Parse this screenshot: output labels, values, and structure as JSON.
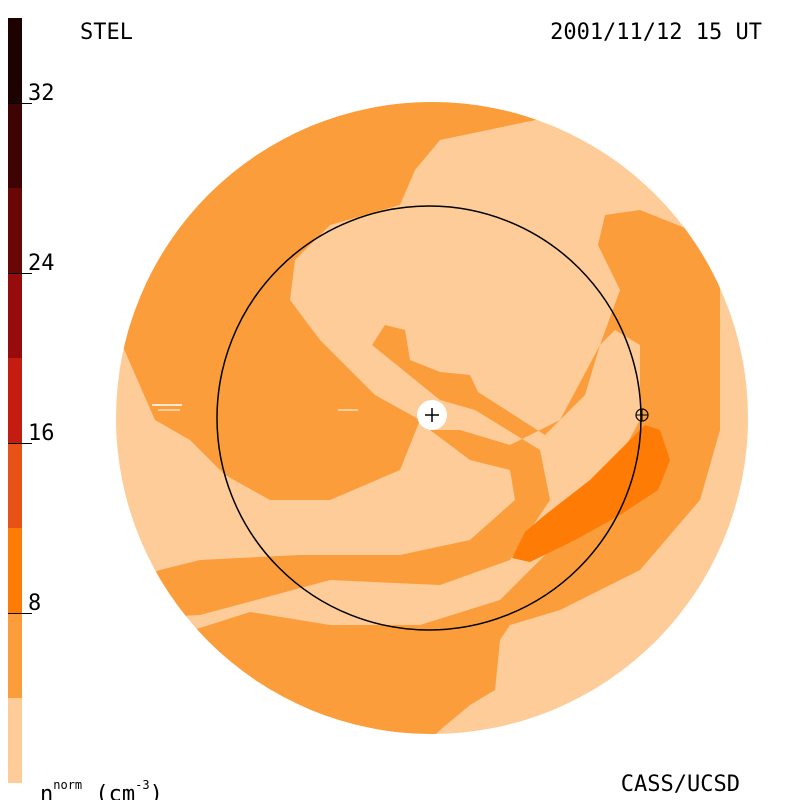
{
  "header": {
    "title_left": "STEL",
    "title_right": "2001/11/12 15 UT"
  },
  "footer": {
    "credit": "CASS/UCSD",
    "unit_base": "n",
    "unit_sup": "norm",
    "unit_rest": " (cm",
    "unit_exp": "-3",
    "unit_close": ")"
  },
  "colorbar": {
    "ticks": [
      "32",
      "24",
      "16",
      "8"
    ],
    "tick_values": [
      32,
      24,
      16,
      8
    ],
    "range": [
      0,
      36
    ],
    "bands": [
      {
        "from": 0,
        "to": 4,
        "color": "#fdcc99"
      },
      {
        "from": 4,
        "to": 8,
        "color": "#fb9d3b"
      },
      {
        "from": 8,
        "to": 12,
        "color": "#fe7b05"
      },
      {
        "from": 12,
        "to": 16,
        "color": "#e85216"
      },
      {
        "from": 16,
        "to": 20,
        "color": "#c41c10"
      },
      {
        "from": 20,
        "to": 24,
        "color": "#960c0c"
      },
      {
        "from": 24,
        "to": 28,
        "color": "#6a0606"
      },
      {
        "from": 28,
        "to": 32,
        "color": "#3e0404"
      },
      {
        "from": 32,
        "to": 36,
        "color": "#1e0202"
      }
    ]
  },
  "map": {
    "colors": {
      "light": "#fdcc99",
      "medium": "#fb9d3b",
      "dark": "#fe7b05",
      "line": "#000000"
    },
    "markers": [
      "sun-marker",
      "earth-marker"
    ]
  }
}
